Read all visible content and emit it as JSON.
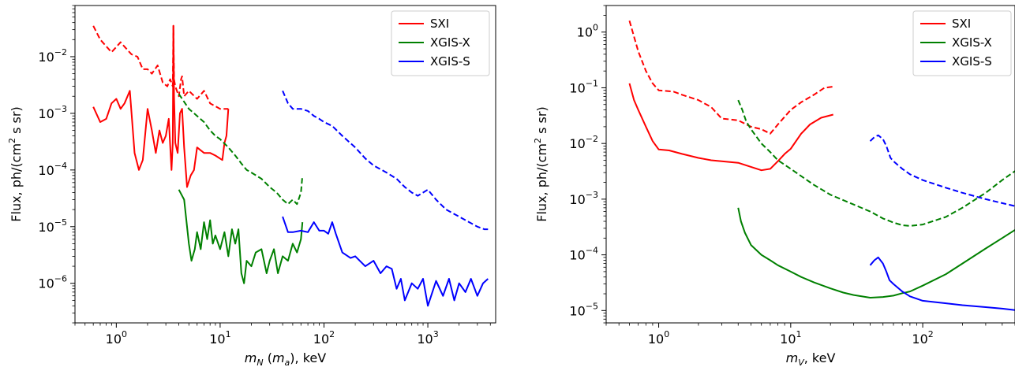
{
  "chart_data": [
    {
      "type": "line",
      "xscale": "log",
      "yscale": "log",
      "xlim": [
        0.4,
        4500
      ],
      "ylim": [
        2e-07,
        0.08
      ],
      "xlabel": "m_N (m_a), keV",
      "xlabel_parts": {
        "m": "m",
        "sub1": "N",
        "mid": " (",
        "m2": "m",
        "sub2": "a",
        "tail": "), keV"
      },
      "ylabel": "Flux, ph/(cm² s sr)",
      "ylabel_parts": {
        "a": "Flux, ph/(cm",
        "sup": "2",
        "b": " s sr)"
      },
      "legend": {
        "position": "top-right",
        "entries": [
          "SXI",
          "XGIS-X",
          "XGIS-S"
        ]
      },
      "xticks": [
        {
          "v": 1,
          "b": "10",
          "e": "0"
        },
        {
          "v": 10,
          "b": "10",
          "e": "1"
        },
        {
          "v": 100,
          "b": "10",
          "e": "2"
        },
        {
          "v": 1000,
          "b": "10",
          "e": "3"
        }
      ],
      "yticks": [
        {
          "v": 1e-06,
          "b": "10",
          "e": "−6"
        },
        {
          "v": 1e-05,
          "b": "10",
          "e": "−5"
        },
        {
          "v": 0.0001,
          "b": "10",
          "e": "−4"
        },
        {
          "v": 0.001,
          "b": "10",
          "e": "−3"
        },
        {
          "v": 0.01,
          "b": "10",
          "e": "−2"
        }
      ],
      "series": [
        {
          "name": "SXI",
          "color": "#ff0000",
          "style": "dashed",
          "x": [
            0.6,
            0.7,
            0.9,
            1.1,
            1.2,
            1.4,
            1.6,
            1.8,
            2.0,
            2.2,
            2.5,
            2.8,
            3.1,
            3.3,
            3.5,
            3.55,
            3.6,
            3.7,
            4.0,
            4.2,
            4.3,
            4.5,
            5,
            6,
            7,
            8,
            10,
            12
          ],
          "y": [
            0.035,
            0.02,
            0.012,
            0.018,
            0.015,
            0.011,
            0.01,
            0.006,
            0.006,
            0.005,
            0.007,
            0.0035,
            0.003,
            0.004,
            0.003,
            0.035,
            0.004,
            0.003,
            0.002,
            0.004,
            0.0045,
            0.002,
            0.0025,
            0.0018,
            0.0025,
            0.0015,
            0.0012,
            0.0012
          ]
        },
        {
          "name": "SXI",
          "color": "#ff0000",
          "style": "solid",
          "x": [
            0.6,
            0.7,
            0.8,
            0.9,
            1.0,
            1.1,
            1.2,
            1.35,
            1.5,
            1.65,
            1.8,
            2.0,
            2.2,
            2.4,
            2.6,
            2.8,
            3.0,
            3.2,
            3.4,
            3.5,
            3.55,
            3.6,
            3.7,
            3.9,
            4.1,
            4.3,
            4.5,
            4.8,
            5.2,
            5.6,
            6.0,
            7.0,
            8.0,
            9.0,
            10.5,
            11,
            11.5,
            12
          ],
          "y": [
            0.0013,
            0.0007,
            0.0008,
            0.0015,
            0.0018,
            0.0012,
            0.0015,
            0.0025,
            0.0002,
            0.0001,
            0.00015,
            0.0012,
            0.0005,
            0.0002,
            0.0005,
            0.0003,
            0.0004,
            0.0008,
            0.0001,
            0.0003,
            0.035,
            0.002,
            0.0003,
            0.0002,
            0.001,
            0.0012,
            0.00025,
            5e-05,
            8e-05,
            0.0001,
            0.00025,
            0.0002,
            0.0002,
            0.00018,
            0.00015,
            0.0003,
            0.0004,
            0.0012
          ]
        },
        {
          "name": "XGIS-X",
          "color": "#008000",
          "style": "dashed",
          "x": [
            4,
            5,
            6,
            7,
            8,
            9,
            10,
            12,
            14,
            16,
            18,
            20,
            25,
            30,
            35,
            40,
            45,
            50,
            55,
            60,
            62
          ],
          "y": [
            0.0022,
            0.0012,
            0.0009,
            0.0007,
            0.0005,
            0.0004,
            0.00035,
            0.00025,
            0.00018,
            0.00013,
            0.0001,
            9e-05,
            7e-05,
            5e-05,
            4e-05,
            3e-05,
            2.5e-05,
            3e-05,
            2.5e-05,
            4e-05,
            8e-05
          ]
        },
        {
          "name": "XGIS-X",
          "color": "#008000",
          "style": "solid",
          "x": [
            4,
            4.5,
            5,
            5.3,
            5.7,
            6,
            6.5,
            7,
            7.5,
            8,
            8.5,
            9,
            10,
            11,
            12,
            13,
            14,
            15,
            16,
            17,
            18,
            20,
            22,
            25,
            28,
            30,
            33,
            36,
            40,
            45,
            50,
            55,
            60,
            62
          ],
          "y": [
            4.5e-05,
            3e-05,
            5e-06,
            2.5e-06,
            4e-06,
            8e-06,
            4e-06,
            1.2e-05,
            6e-06,
            1.3e-05,
            5e-06,
            7e-06,
            4e-06,
            8e-06,
            3e-06,
            9e-06,
            5e-06,
            9e-06,
            1.5e-06,
            1e-06,
            2.5e-06,
            2e-06,
            3.5e-06,
            4e-06,
            1.5e-06,
            2.5e-06,
            4e-06,
            1.5e-06,
            3e-06,
            2.5e-06,
            5e-06,
            3.5e-06,
            6e-06,
            1.2e-05
          ]
        },
        {
          "name": "XGIS-S",
          "color": "#0000ff",
          "style": "dashed",
          "x": [
            40,
            45,
            50,
            60,
            70,
            80,
            90,
            100,
            120,
            150,
            200,
            250,
            300,
            400,
            500,
            600,
            700,
            800,
            1000,
            1200,
            1500,
            2000,
            2500,
            3000,
            3500,
            3800
          ],
          "y": [
            0.0025,
            0.0015,
            0.0012,
            0.0012,
            0.0011,
            0.0009,
            0.0008,
            0.0007,
            0.0006,
            0.0004,
            0.00025,
            0.00016,
            0.00012,
            9e-05,
            7e-05,
            5e-05,
            4e-05,
            3.5e-05,
            4.5e-05,
            3e-05,
            2e-05,
            1.5e-05,
            1.2e-05,
            1e-05,
            9e-06,
            9e-06
          ]
        },
        {
          "name": "XGIS-S",
          "color": "#0000ff",
          "style": "solid",
          "x": [
            40,
            45,
            50,
            60,
            70,
            80,
            90,
            100,
            110,
            120,
            130,
            150,
            180,
            200,
            250,
            300,
            350,
            400,
            450,
            500,
            550,
            600,
            700,
            800,
            900,
            1000,
            1200,
            1400,
            1600,
            1800,
            2000,
            2300,
            2600,
            3000,
            3400,
            3800
          ],
          "y": [
            1.5e-05,
            8e-06,
            8e-06,
            8.5e-06,
            8e-06,
            1.2e-05,
            8.5e-06,
            8.5e-06,
            7.5e-06,
            1.2e-05,
            7.5e-06,
            3.5e-06,
            2.8e-06,
            3e-06,
            2e-06,
            2.5e-06,
            1.5e-06,
            2e-06,
            1.8e-06,
            8e-07,
            1.2e-06,
            5e-07,
            1e-06,
            8e-07,
            1.2e-06,
            4e-07,
            1.1e-06,
            6e-07,
            1.2e-06,
            5e-07,
            1e-06,
            7e-07,
            1.2e-06,
            6e-07,
            1e-06,
            1.2e-06
          ]
        }
      ]
    },
    {
      "type": "line",
      "xscale": "log",
      "yscale": "log",
      "xlim": [
        0.4,
        500
      ],
      "ylim": [
        6e-06,
        3.0
      ],
      "xlabel": "m_V, keV",
      "xlabel_parts": {
        "m": "m",
        "sub1": "V",
        "tail": ", keV"
      },
      "ylabel": "Flux, ph/(cm² s sr)",
      "ylabel_parts": {
        "a": "Flux, ph/(cm",
        "sup": "2",
        "b": " s sr)"
      },
      "legend": {
        "position": "top-right",
        "entries": [
          "SXI",
          "XGIS-X",
          "XGIS-S"
        ]
      },
      "xticks": [
        {
          "v": 1,
          "b": "10",
          "e": "0"
        },
        {
          "v": 10,
          "b": "10",
          "e": "1"
        },
        {
          "v": 100,
          "b": "10",
          "e": "2"
        }
      ],
      "yticks": [
        {
          "v": 1e-05,
          "b": "10",
          "e": "−5"
        },
        {
          "v": 0.0001,
          "b": "10",
          "e": "−4"
        },
        {
          "v": 0.001,
          "b": "10",
          "e": "−3"
        },
        {
          "v": 0.01,
          "b": "10",
          "e": "−2"
        },
        {
          "v": 0.1,
          "b": "10",
          "e": "−1"
        },
        {
          "v": 1,
          "b": "10",
          "e": "0"
        }
      ],
      "series": [
        {
          "name": "SXI",
          "color": "#ff0000",
          "style": "dashed",
          "x": [
            0.6,
            0.7,
            0.8,
            0.9,
            1.0,
            1.3,
            1.5,
            2.0,
            2.5,
            3.0,
            3.5,
            4.0,
            5.0,
            6.0,
            7.0,
            8.0,
            10,
            12,
            15,
            18,
            21
          ],
          "y": [
            1.6,
            0.45,
            0.2,
            0.12,
            0.09,
            0.085,
            0.075,
            0.06,
            0.045,
            0.028,
            0.027,
            0.026,
            0.02,
            0.018,
            0.015,
            0.022,
            0.04,
            0.055,
            0.075,
            0.1,
            0.105
          ]
        },
        {
          "name": "SXI",
          "color": "#ff0000",
          "style": "solid",
          "x": [
            0.6,
            0.65,
            0.7,
            0.8,
            0.9,
            1.0,
            1.2,
            1.5,
            2.0,
            2.5,
            3.0,
            4.0,
            5.0,
            6.0,
            7.0,
            8.0,
            9.0,
            10,
            12,
            14,
            17,
            21
          ],
          "y": [
            0.12,
            0.06,
            0.04,
            0.02,
            0.011,
            0.0078,
            0.0075,
            0.0065,
            0.0055,
            0.005,
            0.0048,
            0.0045,
            0.0038,
            0.0033,
            0.0035,
            0.0048,
            0.0065,
            0.008,
            0.015,
            0.022,
            0.029,
            0.033
          ]
        },
        {
          "name": "XGIS-X",
          "color": "#008000",
          "style": "dashed",
          "x": [
            4.0,
            4.3,
            4.6,
            5.0,
            6.0,
            7.0,
            8.0,
            10,
            15,
            20,
            30,
            40,
            50,
            60,
            70,
            80,
            100,
            150,
            200,
            300,
            400,
            500
          ],
          "y": [
            0.06,
            0.04,
            0.025,
            0.018,
            0.01,
            0.007,
            0.005,
            0.0035,
            0.0018,
            0.0012,
            0.0008,
            0.0006,
            0.00045,
            0.00038,
            0.00034,
            0.00033,
            0.00035,
            0.00048,
            0.0007,
            0.0013,
            0.0022,
            0.0032
          ]
        },
        {
          "name": "XGIS-X",
          "color": "#008000",
          "style": "solid",
          "x": [
            4.0,
            4.2,
            4.5,
            5.0,
            6.0,
            7.0,
            8.0,
            10,
            12,
            15,
            20,
            25,
            30,
            40,
            50,
            60,
            70,
            80,
            100,
            150,
            200,
            300,
            400,
            500
          ],
          "y": [
            0.0007,
            0.0004,
            0.00025,
            0.00015,
            0.0001,
            8e-05,
            6.5e-05,
            5e-05,
            4e-05,
            3.2e-05,
            2.5e-05,
            2.1e-05,
            1.9e-05,
            1.7e-05,
            1.75e-05,
            1.85e-05,
            2.05e-05,
            2.2e-05,
            2.8e-05,
            4.5e-05,
            7e-05,
            0.00013,
            0.0002,
            0.00028
          ]
        },
        {
          "name": "XGIS-S",
          "color": "#0000ff",
          "style": "dashed",
          "x": [
            40,
            43,
            46,
            50,
            53,
            55,
            57,
            60,
            70,
            80,
            100,
            150,
            200,
            300,
            400,
            500
          ],
          "y": [
            0.011,
            0.013,
            0.014,
            0.012,
            0.009,
            0.007,
            0.0055,
            0.0048,
            0.0035,
            0.0028,
            0.0022,
            0.0016,
            0.0013,
            0.001,
            0.00085,
            0.00075
          ]
        },
        {
          "name": "XGIS-S",
          "color": "#0000ff",
          "style": "solid",
          "x": [
            40,
            43,
            46,
            50,
            53,
            56,
            60,
            70,
            80,
            100,
            150,
            200,
            300,
            400,
            500
          ],
          "y": [
            6.5e-05,
            8e-05,
            9e-05,
            7e-05,
            5e-05,
            3.5e-05,
            3e-05,
            2.2e-05,
            1.8e-05,
            1.5e-05,
            1.35e-05,
            1.25e-05,
            1.15e-05,
            1.08e-05,
            1.02e-05
          ]
        }
      ]
    }
  ]
}
